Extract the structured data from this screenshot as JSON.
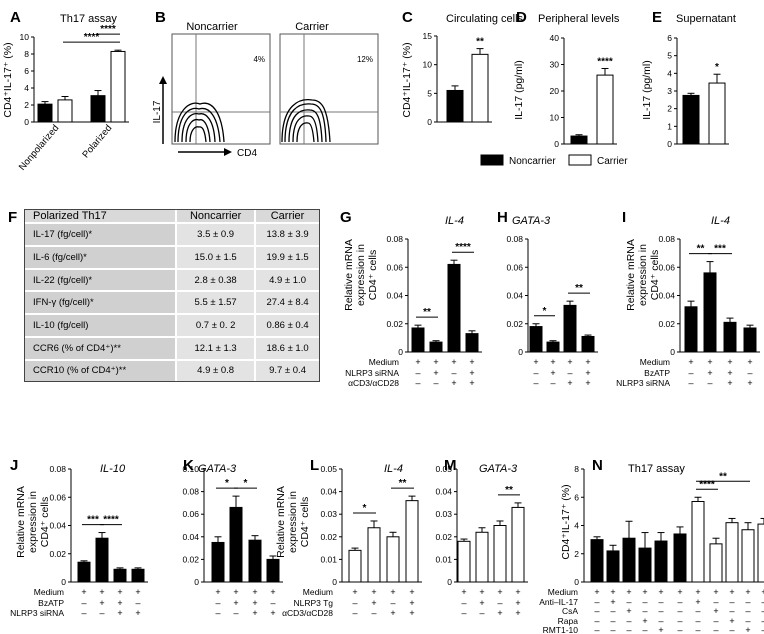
{
  "colors": {
    "filled": "#000000",
    "open": "#ffffff",
    "axis": "#000000",
    "flow_border": "#555555"
  },
  "legend": {
    "noncarrier": "Noncarrier",
    "carrier": "Carrier"
  },
  "flow": {
    "letter": "B",
    "y_label": "IL-17",
    "x_label": "CD4",
    "panels": [
      {
        "title": "Noncarrier",
        "pct": "4%"
      },
      {
        "title": "Carrier",
        "pct": "12%"
      }
    ]
  },
  "table": {
    "letter": "F",
    "headers": [
      "Polarized Th17",
      "Noncarrier",
      "Carrier"
    ],
    "rows": [
      [
        "IL-17 (fg/cell)*",
        "3.5 ± 0.9",
        "13.8 ± 3.9"
      ],
      [
        "IL-6 (fg/cell)*",
        "15.0 ± 1.5",
        "19.9 ± 1.5"
      ],
      [
        "IL-22 (fg/cell)*",
        "2.8 ± 0.38",
        "4.9 ± 1.0"
      ],
      [
        "IFN-γ (fg/cell)*",
        "5.5 ± 1.57",
        "27.4 ± 8.4"
      ],
      [
        "IL-10 (fg/cell)",
        "0.7 ± 0. 2",
        "0.86 ± 0.4"
      ],
      [
        "CCR6 (% of CD4⁺)**",
        "12.1 ± 1.3",
        "18.6 ± 1.0"
      ],
      [
        "CCR10 (% of CD4⁺)**",
        "4.9 ± 0.8",
        "9.7 ± 0.4"
      ]
    ]
  },
  "chart_data": [
    {
      "id": "A",
      "type": "bar",
      "title": "Th17 assay",
      "ylabel": "CD4⁺IL-17⁺ (%)",
      "ylim": [
        0,
        10
      ],
      "yticks": [
        "0",
        "2",
        "4",
        "6",
        "8",
        "10"
      ],
      "values": [
        2.1,
        2.6,
        3.1,
        8.3
      ],
      "errors": [
        0.3,
        0.4,
        0.6,
        0.15
      ],
      "fills": [
        "#000",
        "#fff",
        "#000",
        "#fff"
      ],
      "xgroups": [
        {
          "label": "Nonpolarized",
          "bars": [
            0,
            1
          ]
        },
        {
          "label": "Polarized",
          "bars": [
            2,
            3
          ]
        }
      ],
      "sig": [
        {
          "from": 1,
          "to": 3,
          "label": "****",
          "level": 0
        },
        {
          "from": 2,
          "to": 3,
          "label": "****",
          "level": 1
        }
      ]
    },
    {
      "id": "C",
      "type": "bar",
      "title": "Circulating cells",
      "ylabel": "CD4⁺IL-17⁺ (%)",
      "ylim": [
        0,
        15
      ],
      "yticks": [
        "0",
        "5",
        "10",
        "15"
      ],
      "values": [
        5.5,
        11.8
      ],
      "errors": [
        0.8,
        1.0
      ],
      "fills": [
        "#000",
        "#fff"
      ],
      "sig": [
        {
          "over": 1,
          "label": "**"
        }
      ]
    },
    {
      "id": "D",
      "type": "bar",
      "title": "Peripheral levels",
      "ylabel": "IL-17 (pg/ml)",
      "ylim": [
        0,
        40
      ],
      "yticks": [
        "0",
        "10",
        "20",
        "30",
        "40"
      ],
      "values": [
        3,
        26
      ],
      "errors": [
        0.5,
        2.5
      ],
      "fills": [
        "#000",
        "#fff"
      ],
      "sig": [
        {
          "over": 1,
          "label": "****"
        }
      ]
    },
    {
      "id": "E",
      "type": "bar",
      "title": "Supernatant",
      "ylabel": "IL-17 (pg/ml)",
      "ylim": [
        0,
        6
      ],
      "yticks": [
        "0",
        "1",
        "2",
        "3",
        "4",
        "5",
        "6"
      ],
      "values": [
        2.75,
        3.45
      ],
      "errors": [
        0.12,
        0.5
      ],
      "fills": [
        "#000",
        "#fff"
      ],
      "sig": [
        {
          "over": 1,
          "label": "*"
        }
      ]
    },
    {
      "id": "G",
      "type": "bar",
      "title": "IL-4",
      "ylabel": "Relative mRNA expression in CD4⁺ cells",
      "ylim": [
        0,
        0.08
      ],
      "yticks": [
        "0",
        "0.02",
        "0.04",
        "0.06",
        "0.08"
      ],
      "values": [
        0.017,
        0.007,
        0.062,
        0.013
      ],
      "errors": [
        0.002,
        0.001,
        0.003,
        0.002
      ],
      "fills": [
        "#000",
        "#000",
        "#000",
        "#000"
      ],
      "sig": [
        {
          "from": 0,
          "to": 1,
          "label": "**",
          "level": 0
        },
        {
          "from": 2,
          "to": 3,
          "label": "****",
          "level": 0
        }
      ],
      "conditions": [
        {
          "label": "Medium",
          "signs": [
            "+",
            "+",
            "+",
            "+"
          ]
        },
        {
          "label": "NLRP3 siRNA",
          "signs": [
            "–",
            "+",
            "–",
            "+"
          ]
        },
        {
          "label": "αCD3/αCD28",
          "signs": [
            "–",
            "–",
            "+",
            "+"
          ]
        }
      ]
    },
    {
      "id": "H",
      "type": "bar",
      "title": "GATA-3",
      "ylabel": "",
      "ylim": [
        0,
        0.08
      ],
      "yticks": [
        "0",
        "0.02",
        "0.04",
        "0.06",
        "0.08"
      ],
      "values": [
        0.018,
        0.007,
        0.033,
        0.011
      ],
      "errors": [
        0.002,
        0.001,
        0.003,
        0.001
      ],
      "fills": [
        "#000",
        "#000",
        "#000",
        "#000"
      ],
      "sig": [
        {
          "from": 0,
          "to": 1,
          "label": "*",
          "level": 0
        },
        {
          "from": 2,
          "to": 3,
          "label": "**",
          "level": 0
        }
      ],
      "conditions": [
        {
          "label": "",
          "signs": [
            "+",
            "+",
            "+",
            "+"
          ]
        },
        {
          "label": "",
          "signs": [
            "–",
            "+",
            "–",
            "+"
          ]
        },
        {
          "label": "",
          "signs": [
            "–",
            "–",
            "+",
            "+"
          ]
        }
      ]
    },
    {
      "id": "I",
      "type": "bar",
      "title": "IL-4",
      "ylabel": "Relative mRNA expression in CD4⁺ cells",
      "ylim": [
        0,
        0.08
      ],
      "yticks": [
        "0",
        "0.02",
        "0.04",
        "0.06",
        "0.08"
      ],
      "values": [
        0.032,
        0.056,
        0.021,
        0.017
      ],
      "errors": [
        0.004,
        0.008,
        0.003,
        0.002
      ],
      "fills": [
        "#000",
        "#000",
        "#000",
        "#000"
      ],
      "sig": [
        {
          "from": 0,
          "to": 1,
          "label": "**",
          "level": 0
        },
        {
          "from": 1,
          "to": 2,
          "label": "***",
          "level": 0
        }
      ],
      "conditions": [
        {
          "label": "Medium",
          "signs": [
            "+",
            "+",
            "+",
            "+"
          ]
        },
        {
          "label": "BzATP",
          "signs": [
            "–",
            "+",
            "+",
            "–"
          ]
        },
        {
          "label": "NLRP3 siRNA",
          "signs": [
            "–",
            "–",
            "+",
            "+"
          ]
        }
      ]
    },
    {
      "id": "J",
      "type": "bar",
      "title": "IL-10",
      "ylabel": "Relative mRNA expression in CD4⁺ cells",
      "ylim": [
        0,
        0.08
      ],
      "yticks": [
        "0",
        "0.02",
        "0.04",
        "0.06",
        "0.08"
      ],
      "values": [
        0.014,
        0.031,
        0.009,
        0.009
      ],
      "errors": [
        0.001,
        0.004,
        0.001,
        0.001
      ],
      "fills": [
        "#000",
        "#000",
        "#000",
        "#000"
      ],
      "sig": [
        {
          "from": 0,
          "to": 1,
          "label": "***",
          "level": 0
        },
        {
          "from": 1,
          "to": 2,
          "label": "****",
          "level": 0
        }
      ],
      "conditions": [
        {
          "label": "Medium",
          "signs": [
            "+",
            "+",
            "+",
            "+"
          ]
        },
        {
          "label": "BzATP",
          "signs": [
            "–",
            "+",
            "+",
            "–"
          ]
        },
        {
          "label": "NLRP3 siRNA",
          "signs": [
            "–",
            "–",
            "+",
            "+"
          ]
        }
      ]
    },
    {
      "id": "K",
      "type": "bar",
      "title": "GATA-3",
      "ylabel": "",
      "ylim": [
        0,
        0.1
      ],
      "yticks": [
        "0",
        "0.02",
        "0.04",
        "0.06",
        "0.08",
        "0.10"
      ],
      "values": [
        0.035,
        0.066,
        0.037,
        0.02
      ],
      "errors": [
        0.005,
        0.01,
        0.004,
        0.003
      ],
      "fills": [
        "#000",
        "#000",
        "#000",
        "#000"
      ],
      "sig": [
        {
          "from": 0,
          "to": 1,
          "label": "*",
          "level": 0
        },
        {
          "from": 1,
          "to": 2,
          "label": "*",
          "level": 0
        }
      ],
      "conditions": [
        {
          "label": "",
          "signs": [
            "+",
            "+",
            "+",
            "+"
          ]
        },
        {
          "label": "",
          "signs": [
            "–",
            "+",
            "+",
            "–"
          ]
        },
        {
          "label": "",
          "signs": [
            "–",
            "–",
            "+",
            "+"
          ]
        }
      ]
    },
    {
      "id": "L",
      "type": "bar",
      "title": "IL-4",
      "ylabel": "Relative mRNA expression in CD4⁺ cells",
      "ylim": [
        0,
        0.05
      ],
      "yticks": [
        "0",
        "0.01",
        "0.02",
        "0.03",
        "0.04",
        "0.05"
      ],
      "values": [
        0.014,
        0.024,
        0.02,
        0.036
      ],
      "errors": [
        0.001,
        0.003,
        0.002,
        0.002
      ],
      "fills": [
        "#fff",
        "#fff",
        "#fff",
        "#fff"
      ],
      "sig": [
        {
          "from": 0,
          "to": 1,
          "label": "*",
          "level": 0
        },
        {
          "from": 2,
          "to": 3,
          "label": "**",
          "level": 0
        }
      ],
      "conditions": [
        {
          "label": "Medium",
          "signs": [
            "+",
            "+",
            "+",
            "+"
          ]
        },
        {
          "label": "NLRP3 Tg",
          "signs": [
            "–",
            "+",
            "–",
            "+"
          ]
        },
        {
          "label": "αCD3/αCD28",
          "signs": [
            "–",
            "–",
            "+",
            "+"
          ]
        }
      ]
    },
    {
      "id": "M",
      "type": "bar",
      "title": "GATA-3",
      "ylabel": "",
      "ylim": [
        0,
        0.05
      ],
      "yticks": [
        "0",
        "0.01",
        "0.02",
        "0.03",
        "0.04",
        "0.05"
      ],
      "values": [
        0.018,
        0.022,
        0.025,
        0.033
      ],
      "errors": [
        0.001,
        0.002,
        0.002,
        0.002
      ],
      "fills": [
        "#fff",
        "#fff",
        "#fff",
        "#fff"
      ],
      "sig": [
        {
          "from": 2,
          "to": 3,
          "label": "**",
          "level": 0
        }
      ],
      "conditions": [
        {
          "label": "",
          "signs": [
            "+",
            "+",
            "+",
            "+"
          ]
        },
        {
          "label": "",
          "signs": [
            "–",
            "+",
            "–",
            "+"
          ]
        },
        {
          "label": "",
          "signs": [
            "–",
            "–",
            "+",
            "+"
          ]
        }
      ]
    },
    {
      "id": "N",
      "type": "bar",
      "title": "Th17 assay",
      "ylabel": "CD4⁺IL-17⁺ (%)",
      "ylim": [
        0,
        8
      ],
      "yticks": [
        "0",
        "2",
        "4",
        "6",
        "8"
      ],
      "values": [
        3.0,
        2.2,
        3.1,
        2.4,
        2.9,
        3.4,
        5.7,
        2.7,
        4.2,
        3.7,
        4.1
      ],
      "errors": [
        0.2,
        0.4,
        1.2,
        1.1,
        0.6,
        0.5,
        0.3,
        0.4,
        0.3,
        0.5,
        0.4
      ],
      "fills": [
        "#000",
        "#000",
        "#000",
        "#000",
        "#000",
        "#000",
        "#fff",
        "#fff",
        "#fff",
        "#fff",
        "#fff"
      ],
      "sig": [
        {
          "from": 6,
          "to": 7,
          "label": "****",
          "level": 0
        },
        {
          "from": 6,
          "to": 9,
          "label": "**",
          "level": 1
        }
      ],
      "conditions": [
        {
          "label": "Medium",
          "signs": [
            "+",
            "+",
            "+",
            "+",
            "+",
            "+",
            "+",
            "+",
            "+",
            "+",
            "+"
          ]
        },
        {
          "label": "Anti–IL-17",
          "signs": [
            "–",
            "+",
            "–",
            "–",
            "–",
            "–",
            "+",
            "–",
            "–",
            "–",
            "–"
          ]
        },
        {
          "label": "CsA",
          "signs": [
            "–",
            "–",
            "+",
            "–",
            "–",
            "–",
            "–",
            "+",
            "–",
            "–",
            "–"
          ]
        },
        {
          "label": "Rapa",
          "signs": [
            "–",
            "–",
            "–",
            "+",
            "–",
            "–",
            "–",
            "–",
            "+",
            "–",
            "–"
          ]
        },
        {
          "label": "RMT1-10",
          "signs": [
            "–",
            "–",
            "–",
            "–",
            "+",
            "–",
            "–",
            "–",
            "–",
            "+",
            "–"
          ]
        }
      ]
    }
  ]
}
